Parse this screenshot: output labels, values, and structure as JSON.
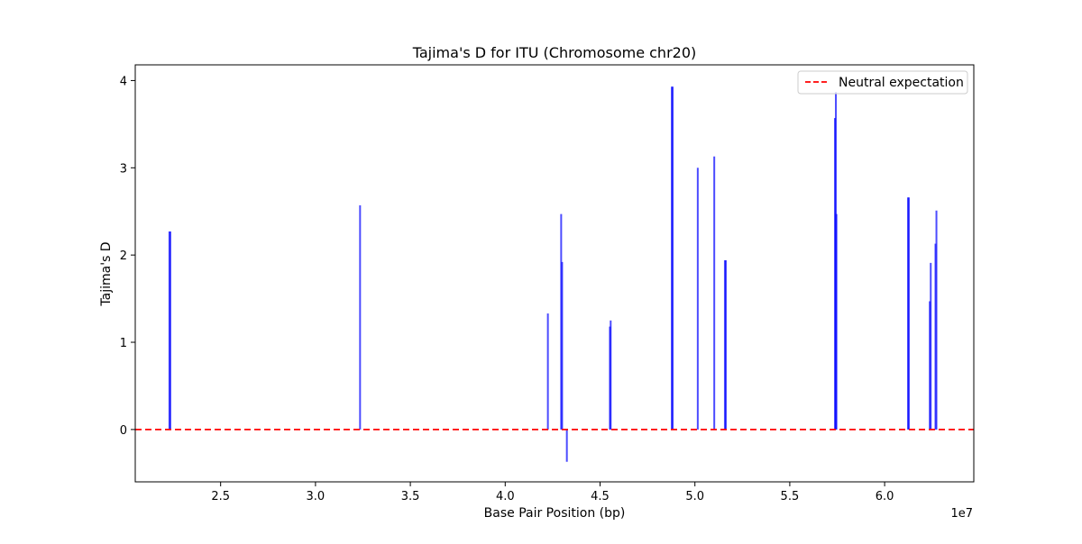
{
  "chart_data": {
    "type": "bar",
    "title": "Tajima's D for ITU (Chromosome chr20)",
    "xlabel": "Base Pair Position (bp)",
    "ylabel": "Tajima's D",
    "x_offset_label": "1e7",
    "xlim": [
      20500000,
      64700000
    ],
    "ylim": [
      -0.6,
      4.18
    ],
    "xticks": [
      25000000,
      30000000,
      35000000,
      40000000,
      45000000,
      50000000,
      55000000,
      60000000
    ],
    "xtick_labels": [
      "2.5",
      "3.0",
      "3.5",
      "4.0",
      "4.5",
      "5.0",
      "5.5",
      "6.0"
    ],
    "yticks": [
      0,
      1,
      2,
      3,
      4
    ],
    "ytick_labels": [
      "0",
      "1",
      "2",
      "3",
      "4"
    ],
    "grid": false,
    "bar_color": "#0000ff",
    "legend": {
      "placement": "top-right",
      "entries": [
        {
          "label": "Neutral expectation",
          "color": "#ff0000",
          "style": "dashed"
        }
      ]
    },
    "reference_line": {
      "y": 0,
      "color": "#ff0000",
      "style": "dashed"
    },
    "series": [
      {
        "points": [
          {
            "x": 22300000,
            "y": 2.27
          },
          {
            "x": 22350000,
            "y": 2.27
          },
          {
            "x": 32350000,
            "y": 2.57
          },
          {
            "x": 42250000,
            "y": 1.33
          },
          {
            "x": 42950000,
            "y": 2.47
          },
          {
            "x": 43000000,
            "y": 1.92
          },
          {
            "x": 43250000,
            "y": -0.37
          },
          {
            "x": 45520000,
            "y": 1.18
          },
          {
            "x": 45560000,
            "y": 1.25
          },
          {
            "x": 48780000,
            "y": 3.93
          },
          {
            "x": 48830000,
            "y": 3.93
          },
          {
            "x": 50150000,
            "y": 3.0
          },
          {
            "x": 51020000,
            "y": 3.13
          },
          {
            "x": 51580000,
            "y": 1.94
          },
          {
            "x": 51630000,
            "y": 1.94
          },
          {
            "x": 57380000,
            "y": 3.57
          },
          {
            "x": 57430000,
            "y": 3.87
          },
          {
            "x": 57460000,
            "y": 2.47
          },
          {
            "x": 61230000,
            "y": 2.66
          },
          {
            "x": 61280000,
            "y": 2.66
          },
          {
            "x": 62380000,
            "y": 1.47
          },
          {
            "x": 62430000,
            "y": 1.91
          },
          {
            "x": 62680000,
            "y": 2.13
          },
          {
            "x": 62730000,
            "y": 2.51
          }
        ]
      }
    ]
  }
}
